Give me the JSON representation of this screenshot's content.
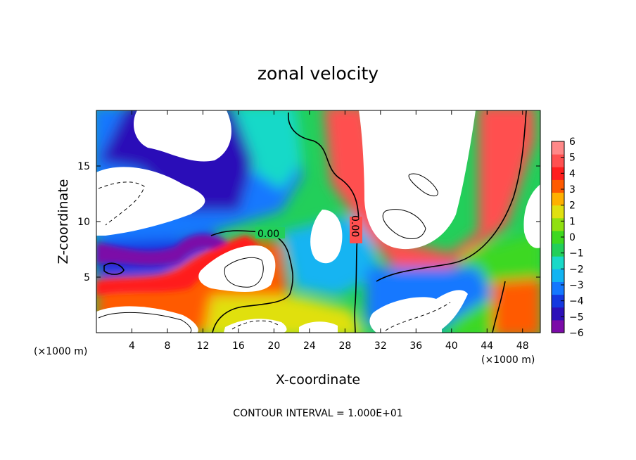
{
  "chart_data": {
    "type": "heatmap",
    "title": "zonal velocity",
    "xlabel": "X-coordinate",
    "ylabel": "Z-coordinate",
    "x_units": "(×1000 m)",
    "contour_interval_text": "CONTOUR INTERVAL = 1.000E+01",
    "xlim": [
      0,
      50
    ],
    "ylim": [
      0,
      20
    ],
    "x_ticks": [
      "4",
      "8",
      "12",
      "16",
      "20",
      "24",
      "28",
      "32",
      "36",
      "40",
      "44",
      "48"
    ],
    "x_tick_values": [
      4,
      8,
      12,
      16,
      20,
      24,
      28,
      32,
      36,
      40,
      44,
      48
    ],
    "y_ticks": [
      "5",
      "10",
      "15"
    ],
    "y_tick_values": [
      5,
      10,
      15
    ],
    "colorbar": {
      "ticks": [
        "6",
        "5",
        "4",
        "3",
        "2",
        "1",
        "0",
        "−1",
        "−2",
        "−3",
        "−4",
        "−5",
        "−6"
      ],
      "range": [
        -6,
        6
      ],
      "colors": [
        "#7b0ba8",
        "#2c10b8",
        "#1438e0",
        "#1478ff",
        "#12b4f2",
        "#19d9c8",
        "#22cf5a",
        "#3ed820",
        "#90e010",
        "#e0e010",
        "#ffb000",
        "#ff5a00",
        "#ff1e1e",
        "#ff5050",
        "#ff8888"
      ]
    },
    "contour_labels": [
      "0.00",
      "0.00"
    ]
  }
}
